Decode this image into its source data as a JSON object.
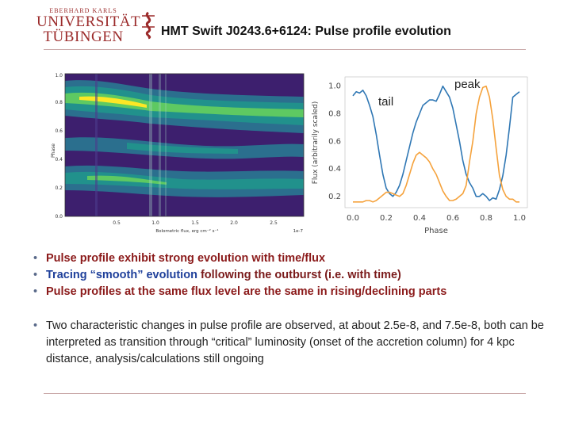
{
  "header": {
    "logo_small": "EBERHARD KARLS",
    "logo_line1": "UNIVERSITÄT",
    "logo_line2": "TÜBINGEN",
    "title": "HMT Swift J0243.6+6124: Pulse profile evolution"
  },
  "heatmap": {
    "ylabel": "Phase",
    "xlabel": "Bolometric flux, erg cm⁻² s⁻¹",
    "exponent": "1e-7",
    "xticks": [
      "0.5",
      "1.0",
      "1.5",
      "2.0",
      "2.5"
    ],
    "yticks": [
      "0.0",
      "0.2",
      "0.4",
      "0.6",
      "0.8",
      "1.0"
    ]
  },
  "profile_plot": {
    "ylabel": "Flux (arbitrarily scaled)",
    "xlabel": "Phase",
    "xticks": [
      "0.0",
      "0.2",
      "0.4",
      "0.6",
      "0.8",
      "1.0"
    ],
    "yticks": [
      "0.2",
      "0.4",
      "0.6",
      "0.8",
      "1.0"
    ],
    "annotation_tail": "tail",
    "annotation_peak": "peak",
    "colors": {
      "tail_series": "#2f77b4",
      "peak_series": "#f5a23c"
    }
  },
  "chart_data": [
    {
      "type": "line",
      "title": "",
      "xlabel": "Phase",
      "ylabel": "Flux (arbitrarily scaled)",
      "xlim": [
        0,
        1
      ],
      "ylim": [
        0.13,
        1.05
      ],
      "series": [
        {
          "color": "#2f77b4",
          "x": [
            0.0,
            0.02,
            0.04,
            0.06,
            0.08,
            0.1,
            0.12,
            0.14,
            0.16,
            0.18,
            0.2,
            0.22,
            0.24,
            0.26,
            0.28,
            0.3,
            0.32,
            0.34,
            0.36,
            0.38,
            0.4,
            0.42,
            0.44,
            0.46,
            0.48,
            0.5,
            0.52,
            0.54,
            0.56,
            0.58,
            0.6,
            0.62,
            0.64,
            0.66,
            0.68,
            0.7,
            0.72,
            0.74,
            0.76,
            0.78,
            0.8,
            0.82,
            0.84,
            0.86,
            0.88,
            0.9,
            0.92,
            0.94,
            0.96,
            0.98,
            1.0
          ],
          "values": [
            0.93,
            0.96,
            0.95,
            0.97,
            0.93,
            0.86,
            0.78,
            0.65,
            0.5,
            0.36,
            0.26,
            0.22,
            0.2,
            0.23,
            0.28,
            0.36,
            0.46,
            0.56,
            0.66,
            0.74,
            0.8,
            0.86,
            0.88,
            0.9,
            0.9,
            0.89,
            0.94,
            1.0,
            0.96,
            0.92,
            0.84,
            0.72,
            0.6,
            0.46,
            0.36,
            0.3,
            0.26,
            0.2,
            0.2,
            0.22,
            0.2,
            0.17,
            0.19,
            0.18,
            0.25,
            0.35,
            0.5,
            0.7,
            0.92,
            0.94,
            0.96
          ]
        },
        {
          "color": "#f5a23c",
          "x": [
            0.0,
            0.02,
            0.04,
            0.06,
            0.08,
            0.1,
            0.12,
            0.14,
            0.16,
            0.18,
            0.2,
            0.22,
            0.24,
            0.26,
            0.28,
            0.3,
            0.32,
            0.34,
            0.36,
            0.38,
            0.4,
            0.42,
            0.44,
            0.46,
            0.48,
            0.5,
            0.52,
            0.54,
            0.56,
            0.58,
            0.6,
            0.62,
            0.64,
            0.66,
            0.68,
            0.7,
            0.72,
            0.74,
            0.76,
            0.78,
            0.8,
            0.82,
            0.84,
            0.86,
            0.88,
            0.9,
            0.92,
            0.94,
            0.96,
            0.98,
            1.0
          ],
          "values": [
            0.16,
            0.16,
            0.16,
            0.16,
            0.17,
            0.17,
            0.16,
            0.17,
            0.19,
            0.21,
            0.23,
            0.23,
            0.22,
            0.21,
            0.2,
            0.22,
            0.28,
            0.36,
            0.44,
            0.5,
            0.52,
            0.5,
            0.48,
            0.45,
            0.4,
            0.36,
            0.3,
            0.24,
            0.2,
            0.17,
            0.17,
            0.18,
            0.2,
            0.22,
            0.28,
            0.45,
            0.6,
            0.8,
            0.92,
            0.99,
            1.0,
            0.92,
            0.76,
            0.55,
            0.35,
            0.25,
            0.2,
            0.18,
            0.18,
            0.16,
            0.16
          ]
        }
      ]
    }
  ],
  "bullets": [
    {
      "segments": [
        {
          "text": "Pulse profile exhibit strong evolution with time/flux",
          "style": "red"
        }
      ]
    },
    {
      "segments": [
        {
          "text": "Tracing “smooth” evolution",
          "style": "blue"
        },
        {
          "text": " following the outburst (i.e. with time)",
          "style": "dark"
        }
      ]
    },
    {
      "segments": [
        {
          "text": "Pulse profiles at the same flux level are the same in rising/declining parts",
          "style": "red"
        }
      ]
    }
  ],
  "paragraph": "Two characteristic changes in pulse profile are observed, at about 2.5e-8, and 7.5e-8, both can be interpreted as transition through “critical” luminosity (onset of the accretion column) for 4 kpc distance, analysis/calculations still ongoing"
}
